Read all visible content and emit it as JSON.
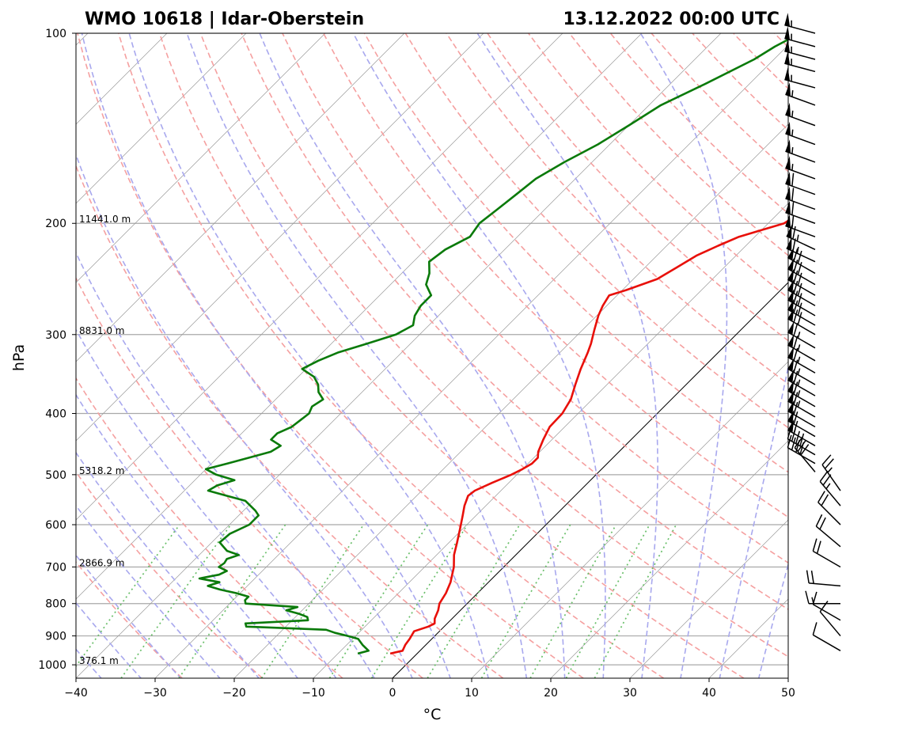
{
  "chart_data": {
    "type": "line",
    "title_left": "WMO 10618 | Idar-Oberstein",
    "title_right": "13.12.2022 00:00 UTC",
    "xlabel": "°C",
    "ylabel": "hPa",
    "xlim": [
      -40,
      50
    ],
    "ylim_hpa": [
      1050,
      100
    ],
    "y_scale": "log",
    "skew": true,
    "x_ticks": [
      "−40",
      "−30",
      "−20",
      "−10",
      "0",
      "10",
      "20",
      "30",
      "40",
      "50"
    ],
    "x_tick_values": [
      -40,
      -30,
      -20,
      -10,
      0,
      10,
      20,
      30,
      40,
      50
    ],
    "y_ticks": [
      "100",
      "200",
      "300",
      "400",
      "500",
      "600",
      "700",
      "800",
      "900",
      "1000"
    ],
    "y_tick_values": [
      100,
      200,
      300,
      400,
      500,
      600,
      700,
      800,
      900,
      1000
    ],
    "height_labels": [
      {
        "p": 200,
        "text": "11441.0 m"
      },
      {
        "p": 300,
        "text": "8831.0 m"
      },
      {
        "p": 500,
        "text": "5318.2 m"
      },
      {
        "p": 700,
        "text": "2866.9 m"
      },
      {
        "p": 1000,
        "text": "376.1 m"
      }
    ],
    "colors": {
      "temperature": "#e8100a",
      "dewpoint": "#0a7a0a",
      "dry_adiabat": "#f5a0a0",
      "moist_adiabat": "#a8a8ee",
      "mixing_ratio": "#6abf6a",
      "isotherm": "#9a9a9a",
      "isobar": "#a8a8a8",
      "zero_isotherm": "#000000"
    },
    "series": [
      {
        "name": "",
        "role": "temperature",
        "points": [
          [
            960,
            -3.4
          ],
          [
            950,
            -2.2
          ],
          [
            930,
            -2.6
          ],
          [
            910,
            -2.8
          ],
          [
            885,
            -3.2
          ],
          [
            870,
            -2.0
          ],
          [
            860,
            -1.6
          ],
          [
            845,
            -2.2
          ],
          [
            820,
            -2.8
          ],
          [
            800,
            -3.5
          ],
          [
            770,
            -4.0
          ],
          [
            740,
            -4.8
          ],
          [
            700,
            -6.3
          ],
          [
            670,
            -7.8
          ],
          [
            640,
            -9.0
          ],
          [
            610,
            -10.3
          ],
          [
            580,
            -11.7
          ],
          [
            560,
            -12.7
          ],
          [
            540,
            -13.5
          ],
          [
            530,
            -13.3
          ],
          [
            515,
            -12.1
          ],
          [
            500,
            -10.7
          ],
          [
            490,
            -10.0
          ],
          [
            480,
            -9.5
          ],
          [
            470,
            -9.5
          ],
          [
            460,
            -10.2
          ],
          [
            440,
            -11.1
          ],
          [
            420,
            -11.9
          ],
          [
            400,
            -12.0
          ],
          [
            380,
            -12.7
          ],
          [
            360,
            -14.0
          ],
          [
            340,
            -15.3
          ],
          [
            320,
            -16.5
          ],
          [
            310,
            -17.2
          ],
          [
            295,
            -18.5
          ],
          [
            280,
            -19.8
          ],
          [
            270,
            -20.5
          ],
          [
            260,
            -21.0
          ],
          [
            255,
            -19.5
          ],
          [
            245,
            -17.0
          ],
          [
            235,
            -16.0
          ],
          [
            225,
            -15.0
          ],
          [
            217,
            -13.5
          ],
          [
            210,
            -12.0
          ],
          [
            205,
            -10.0
          ],
          [
            200,
            -8.0
          ],
          [
            195,
            -7.5
          ],
          [
            185,
            -9.0
          ],
          [
            175,
            -10.5
          ],
          [
            165,
            -12.0
          ],
          [
            158,
            -13.0
          ],
          [
            150,
            -13.5
          ],
          [
            145,
            -13.5
          ],
          [
            140,
            -14.5
          ],
          [
            135,
            -16.5
          ],
          [
            130,
            -18.0
          ],
          [
            125,
            -18.5
          ],
          [
            120,
            -18.8
          ],
          [
            115,
            -21.0
          ],
          [
            110,
            -21.5
          ],
          [
            105,
            -22.3
          ],
          [
            102,
            -22.5
          ],
          [
            100,
            -22.7
          ]
        ]
      },
      {
        "name": "",
        "role": "dewpoint",
        "points": [
          [
            960,
            -7.5
          ],
          [
            950,
            -6.5
          ],
          [
            930,
            -8.0
          ],
          [
            910,
            -9.3
          ],
          [
            900,
            -11.0
          ],
          [
            890,
            -13.0
          ],
          [
            880,
            -14.5
          ],
          [
            870,
            -25.0
          ],
          [
            860,
            -25.5
          ],
          [
            850,
            -18.0
          ],
          [
            840,
            -18.5
          ],
          [
            830,
            -20.0
          ],
          [
            820,
            -22.0
          ],
          [
            810,
            -21.0
          ],
          [
            800,
            -28.0
          ],
          [
            790,
            -28.5
          ],
          [
            780,
            -28.5
          ],
          [
            770,
            -30.5
          ],
          [
            760,
            -33.0
          ],
          [
            750,
            -35.0
          ],
          [
            740,
            -34.0
          ],
          [
            730,
            -37.0
          ],
          [
            720,
            -35.0
          ],
          [
            710,
            -34.5
          ],
          [
            700,
            -36.0
          ],
          [
            690,
            -35.8
          ],
          [
            680,
            -36.0
          ],
          [
            670,
            -35.0
          ],
          [
            660,
            -37.0
          ],
          [
            650,
            -38.0
          ],
          [
            640,
            -39.0
          ],
          [
            620,
            -38.8
          ],
          [
            600,
            -37.5
          ],
          [
            580,
            -37.5
          ],
          [
            570,
            -38.5
          ],
          [
            550,
            -41.0
          ],
          [
            540,
            -44.0
          ],
          [
            530,
            -47.0
          ],
          [
            520,
            -46.5
          ],
          [
            510,
            -45.0
          ],
          [
            500,
            -48.0
          ],
          [
            490,
            -50.0
          ],
          [
            480,
            -48.0
          ],
          [
            470,
            -46.0
          ],
          [
            460,
            -44.0
          ],
          [
            450,
            -43.5
          ],
          [
            440,
            -45.5
          ],
          [
            430,
            -45.5
          ],
          [
            420,
            -44.5
          ],
          [
            400,
            -44.0
          ],
          [
            390,
            -44.5
          ],
          [
            380,
            -44.0
          ],
          [
            370,
            -45.5
          ],
          [
            360,
            -46.5
          ],
          [
            350,
            -48.0
          ],
          [
            340,
            -50.5
          ],
          [
            330,
            -49.5
          ],
          [
            320,
            -48.0
          ],
          [
            310,
            -45.5
          ],
          [
            300,
            -43.0
          ],
          [
            290,
            -42.0
          ],
          [
            280,
            -43.0
          ],
          [
            270,
            -43.5
          ],
          [
            260,
            -43.5
          ],
          [
            250,
            -45.5
          ],
          [
            240,
            -46.5
          ],
          [
            230,
            -48.0
          ],
          [
            220,
            -47.5
          ],
          [
            210,
            -46.0
          ],
          [
            200,
            -46.5
          ],
          [
            190,
            -46.0
          ],
          [
            180,
            -45.5
          ],
          [
            170,
            -45.0
          ],
          [
            160,
            -43.5
          ],
          [
            150,
            -41.5
          ],
          [
            140,
            -40.0
          ],
          [
            130,
            -38.5
          ],
          [
            120,
            -35.5
          ],
          [
            110,
            -32.5
          ],
          [
            105,
            -31.5
          ],
          [
            100,
            -30.0
          ]
        ]
      }
    ],
    "wind_barbs": [
      {
        "p": 100,
        "dir": 285,
        "kt": 55
      },
      {
        "p": 105,
        "dir": 285,
        "kt": 55
      },
      {
        "p": 110,
        "dir": 285,
        "kt": 55
      },
      {
        "p": 115,
        "dir": 285,
        "kt": 55
      },
      {
        "p": 122,
        "dir": 285,
        "kt": 55
      },
      {
        "p": 130,
        "dir": 290,
        "kt": 55
      },
      {
        "p": 140,
        "dir": 290,
        "kt": 55
      },
      {
        "p": 150,
        "dir": 290,
        "kt": 55
      },
      {
        "p": 160,
        "dir": 290,
        "kt": 55
      },
      {
        "p": 170,
        "dir": 290,
        "kt": 55
      },
      {
        "p": 180,
        "dir": 290,
        "kt": 60
      },
      {
        "p": 190,
        "dir": 290,
        "kt": 60
      },
      {
        "p": 200,
        "dir": 290,
        "kt": 60
      },
      {
        "p": 210,
        "dir": 290,
        "kt": 60
      },
      {
        "p": 220,
        "dir": 295,
        "kt": 65
      },
      {
        "p": 230,
        "dir": 295,
        "kt": 65
      },
      {
        "p": 240,
        "dir": 300,
        "kt": 70
      },
      {
        "p": 250,
        "dir": 300,
        "kt": 70
      },
      {
        "p": 260,
        "dir": 300,
        "kt": 70
      },
      {
        "p": 270,
        "dir": 300,
        "kt": 70
      },
      {
        "p": 280,
        "dir": 300,
        "kt": 70
      },
      {
        "p": 290,
        "dir": 300,
        "kt": 70
      },
      {
        "p": 300,
        "dir": 300,
        "kt": 70
      },
      {
        "p": 315,
        "dir": 300,
        "kt": 65
      },
      {
        "p": 330,
        "dir": 300,
        "kt": 65
      },
      {
        "p": 345,
        "dir": 300,
        "kt": 65
      },
      {
        "p": 360,
        "dir": 300,
        "kt": 65
      },
      {
        "p": 375,
        "dir": 300,
        "kt": 65
      },
      {
        "p": 390,
        "dir": 300,
        "kt": 65
      },
      {
        "p": 405,
        "dir": 300,
        "kt": 65
      },
      {
        "p": 420,
        "dir": 300,
        "kt": 60
      },
      {
        "p": 435,
        "dir": 300,
        "kt": 60
      },
      {
        "p": 450,
        "dir": 300,
        "kt": 60
      },
      {
        "p": 465,
        "dir": 300,
        "kt": 40
      },
      {
        "p": 480,
        "dir": 300,
        "kt": 40
      },
      {
        "p": 495,
        "dir": 320,
        "kt": 30
      },
      {
        "p": 530,
        "dir": 325,
        "kt": 25
      },
      {
        "p": 560,
        "dir": 320,
        "kt": 25
      },
      {
        "p": 600,
        "dir": 315,
        "kt": 20
      },
      {
        "p": 650,
        "dir": 310,
        "kt": 20
      },
      {
        "p": 700,
        "dir": 300,
        "kt": 20
      },
      {
        "p": 750,
        "dir": 275,
        "kt": 20
      },
      {
        "p": 800,
        "dir": 270,
        "kt": 15
      },
      {
        "p": 850,
        "dir": 300,
        "kt": 10
      },
      {
        "p": 900,
        "dir": 320,
        "kt": 10
      },
      {
        "p": 950,
        "dir": 300,
        "kt": 10
      }
    ]
  }
}
